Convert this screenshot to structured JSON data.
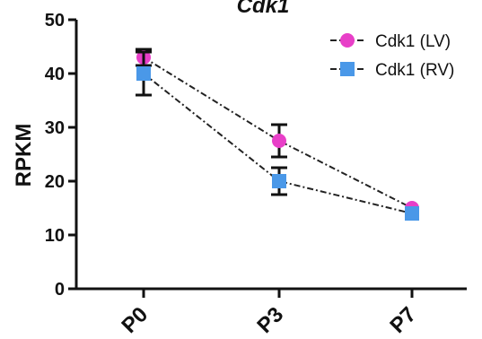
{
  "chart_data": {
    "type": "line",
    "title": "Cdk1",
    "xlabel": "",
    "ylabel": "RPKM",
    "categories": [
      "P0",
      "P3",
      "P7"
    ],
    "ylim": [
      0,
      50
    ],
    "yticks": [
      0,
      10,
      20,
      30,
      40,
      50
    ],
    "grid": false,
    "legend_position": "top-right",
    "series": [
      {
        "name": "Cdk1 (LV)",
        "marker": "circle",
        "color": "#e83fc8",
        "values": [
          43,
          27.5,
          15
        ],
        "error": [
          1.5,
          3,
          0.5
        ]
      },
      {
        "name": "Cdk1 (RV)",
        "marker": "square",
        "color": "#4a98e8",
        "values": [
          40,
          20,
          14
        ],
        "error": [
          4,
          2.5,
          0.5
        ]
      }
    ]
  }
}
